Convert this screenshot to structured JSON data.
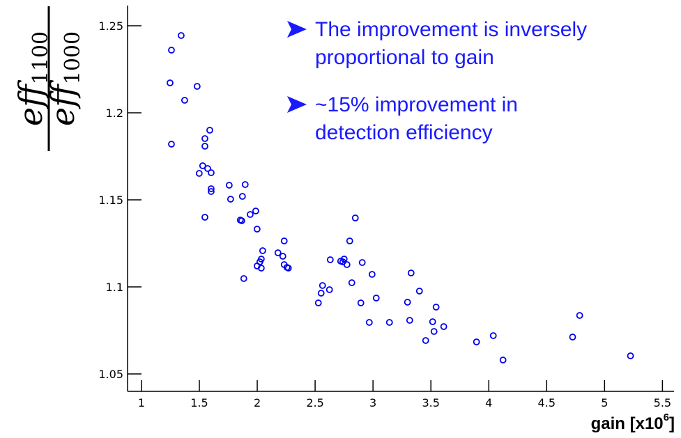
{
  "chart_data": {
    "type": "scatter",
    "x_label": "gain [x10",
    "x_label_exponent": "6",
    "x_label_end": "]",
    "y_label": {
      "numerator": "eff",
      "numerator_sub": "1100",
      "denominator": "eff",
      "denominator_sub": "1000"
    },
    "annotations": [
      [
        "The improvement is inversely",
        "proportional to gain"
      ],
      [
        "~15% improvement in",
        "detection efficiency"
      ]
    ],
    "color": "#0000ee",
    "xlim": [
      0.88,
      5.6
    ],
    "ylim": [
      1.04,
      1.2616
    ],
    "xticks": [
      1,
      1.5,
      2,
      2.5,
      3,
      3.5,
      4,
      4.5,
      5,
      5.5
    ],
    "yticks": [
      1.05,
      1.1,
      1.15,
      1.2,
      1.25
    ],
    "x": [
      1.343,
      1.259,
      1.247,
      1.481,
      1.373,
      1.259,
      1.59,
      1.548,
      1.548,
      1.529,
      1.572,
      1.499,
      1.602,
      1.602,
      1.602,
      1.548,
      1.758,
      1.77,
      1.896,
      1.872,
      1.987,
      1.939,
      1.854,
      1.866,
      1.999,
      1.884,
      2.233,
      2.179,
      2.221,
      2.047,
      2.035,
      2.023,
      1.999,
      2.035,
      2.233,
      2.257,
      2.269,
      2.631,
      2.721,
      2.751,
      2.775,
      2.739,
      2.847,
      2.799,
      2.907,
      2.817,
      2.992,
      2.564,
      2.624,
      2.552,
      2.528,
      2.895,
      3.028,
      2.968,
      3.142,
      3.329,
      3.298,
      3.317,
      3.401,
      3.545,
      3.515,
      3.527,
      3.611,
      3.455,
      3.894,
      4.039,
      4.123,
      4.724,
      4.785,
      5.224
    ],
    "values": [
      1.2444,
      1.236,
      1.2172,
      1.2152,
      1.2072,
      1.182,
      1.19,
      1.1852,
      1.1808,
      1.1696,
      1.168,
      1.1652,
      1.1656,
      1.1564,
      1.1548,
      1.14,
      1.1584,
      1.1504,
      1.1588,
      1.152,
      1.1436,
      1.1416,
      1.1384,
      1.138,
      1.1332,
      1.1048,
      1.1264,
      1.1196,
      1.1176,
      1.1208,
      1.116,
      1.1144,
      1.112,
      1.1108,
      1.1128,
      1.1112,
      1.1108,
      1.1156,
      1.1148,
      1.116,
      1.1128,
      1.1144,
      1.1396,
      1.1264,
      1.114,
      1.1024,
      1.1072,
      1.1008,
      1.0984,
      1.0964,
      1.0908,
      1.0908,
      1.0936,
      1.0796,
      1.0796,
      1.108,
      1.0912,
      1.0808,
      1.0976,
      1.0884,
      1.08,
      1.0744,
      1.0772,
      1.0692,
      1.0684,
      1.072,
      1.058,
      1.0712,
      1.0836,
      1.0604
    ]
  }
}
